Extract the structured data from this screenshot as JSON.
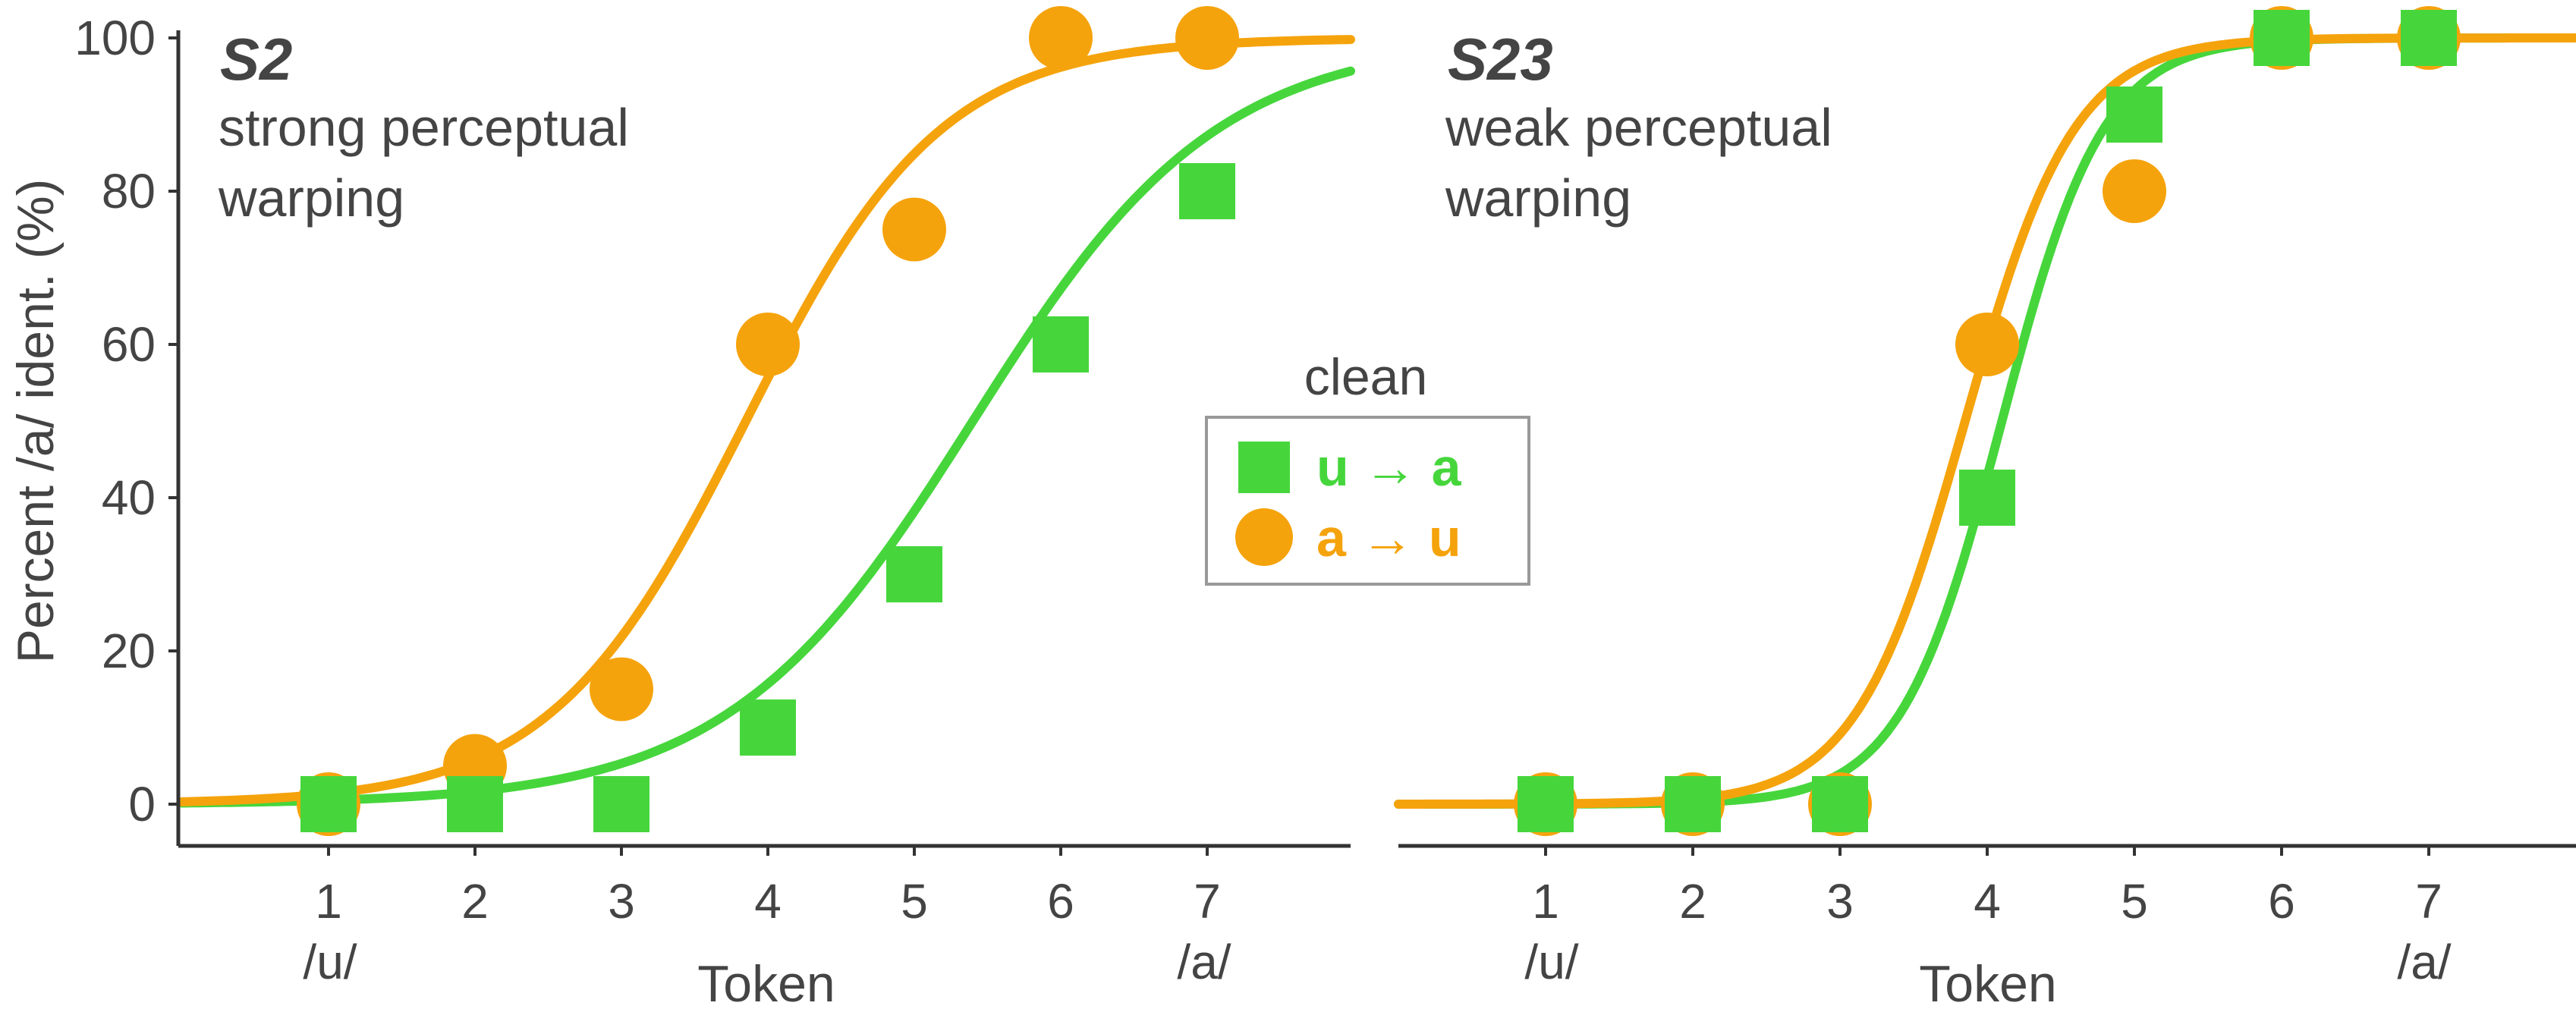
{
  "chart_data": [
    {
      "type": "scatter",
      "panel": "S2",
      "title": "S2",
      "subtitle_lines": [
        "strong perceptual",
        "warping"
      ],
      "xlabel": "Token",
      "ylabel": "Percent /a/ ident. (%)",
      "x_ticks": [
        "1",
        "2",
        "3",
        "4",
        "5",
        "6",
        "7"
      ],
      "x_endpoint_labels": [
        "/u/",
        "/a/"
      ],
      "y_ticks": [
        "0",
        "20",
        "40",
        "60",
        "80",
        "100"
      ],
      "xlim": [
        0,
        8
      ],
      "ylim": [
        0,
        100
      ],
      "series": [
        {
          "name": "u → a",
          "marker": "square",
          "color": "#46d63c",
          "x": [
            1,
            2,
            3,
            4,
            5,
            6,
            7
          ],
          "y": [
            0,
            0,
            0,
            10,
            30,
            60,
            80
          ],
          "fit": {
            "midpoint": 5.4,
            "slope": 1.2
          }
        },
        {
          "name": "a → u",
          "marker": "circle",
          "color": "#f5a30c",
          "x": [
            1,
            2,
            3,
            4,
            5,
            6,
            7
          ],
          "y": [
            0,
            5,
            15,
            60,
            75,
            100,
            100
          ],
          "fit": {
            "midpoint": 3.85,
            "slope": 1.5
          }
        }
      ]
    },
    {
      "type": "scatter",
      "panel": "S23",
      "title": "S23",
      "subtitle_lines": [
        "weak perceptual",
        "warping"
      ],
      "xlabel": "Token",
      "x_ticks": [
        "1",
        "2",
        "3",
        "4",
        "5",
        "6",
        "7"
      ],
      "x_endpoint_labels": [
        "/u/",
        "/a/"
      ],
      "xlim": [
        0,
        8
      ],
      "ylim": [
        0,
        100
      ],
      "series": [
        {
          "name": "u → a",
          "marker": "square",
          "color": "#46d63c",
          "x": [
            1,
            2,
            3,
            4,
            5,
            6,
            7
          ],
          "y": [
            0,
            0,
            0,
            40,
            90,
            100,
            100
          ],
          "fit": {
            "midpoint": 4.1,
            "slope": 2.9
          }
        },
        {
          "name": "a → u",
          "marker": "circle",
          "color": "#f5a30c",
          "x": [
            1,
            2,
            3,
            4,
            5,
            6,
            7
          ],
          "y": [
            0,
            0,
            0,
            60,
            80,
            100,
            100
          ],
          "fit": {
            "midpoint": 3.85,
            "slope": 2.7
          }
        }
      ]
    }
  ],
  "legend": {
    "title": "clean",
    "items": [
      {
        "label": "u → a",
        "marker": "square",
        "color": "#46d63c"
      },
      {
        "label": "a → u",
        "marker": "circle",
        "color": "#f5a30c"
      }
    ]
  }
}
